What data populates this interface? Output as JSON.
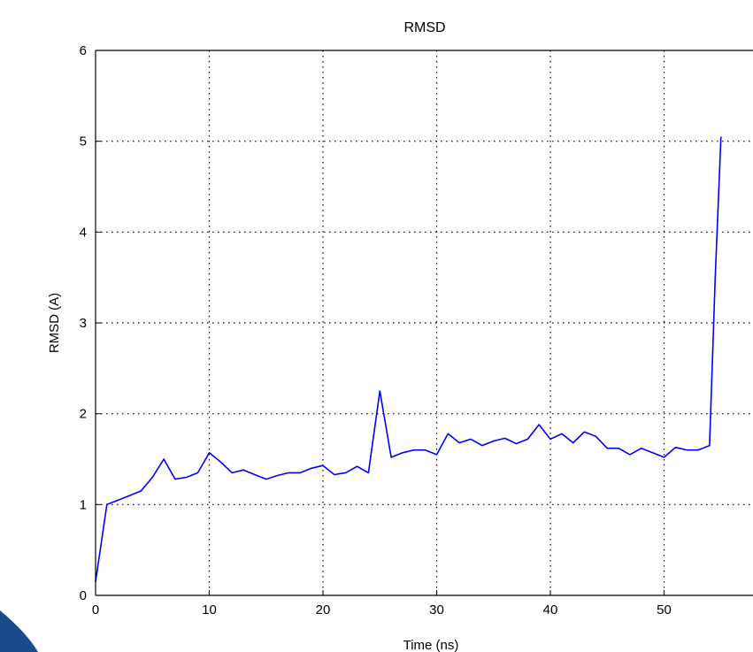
{
  "chart_data": {
    "type": "line",
    "title": "RMSD",
    "xlabel": "Time (ns)",
    "ylabel": "RMSD (A)",
    "xlim": [
      0,
      58
    ],
    "ylim": [
      0,
      6
    ],
    "x_ticks": [
      0,
      10,
      20,
      30,
      40,
      50
    ],
    "y_ticks": [
      0,
      1,
      2,
      3,
      4,
      5,
      6
    ],
    "grid": true,
    "series": [
      {
        "color": "#0000ff",
        "x": [
          0,
          1,
          2,
          3,
          4,
          5,
          6,
          7,
          8,
          9,
          10,
          11,
          12,
          13,
          14,
          15,
          16,
          17,
          18,
          19,
          20,
          21,
          22,
          23,
          24,
          25,
          26,
          27,
          28,
          29,
          30,
          31,
          32,
          33,
          34,
          35,
          36,
          37,
          38,
          39,
          40,
          41,
          42,
          43,
          44,
          45,
          46,
          47,
          48,
          49,
          50,
          51,
          52,
          53,
          54,
          54.5,
          55
        ],
        "y": [
          0.15,
          1.0,
          1.05,
          1.1,
          1.15,
          1.3,
          1.5,
          1.28,
          1.3,
          1.35,
          1.57,
          1.47,
          1.35,
          1.38,
          1.33,
          1.28,
          1.32,
          1.35,
          1.35,
          1.4,
          1.43,
          1.33,
          1.35,
          1.42,
          1.35,
          2.25,
          1.52,
          1.57,
          1.6,
          1.6,
          1.55,
          1.78,
          1.68,
          1.72,
          1.65,
          1.7,
          1.73,
          1.67,
          1.72,
          1.88,
          1.72,
          1.78,
          1.68,
          1.8,
          1.75,
          1.62,
          1.62,
          1.55,
          1.62,
          1.57,
          1.52,
          1.63,
          1.6,
          1.6,
          1.65,
          3.5,
          5.05
        ]
      }
    ]
  }
}
